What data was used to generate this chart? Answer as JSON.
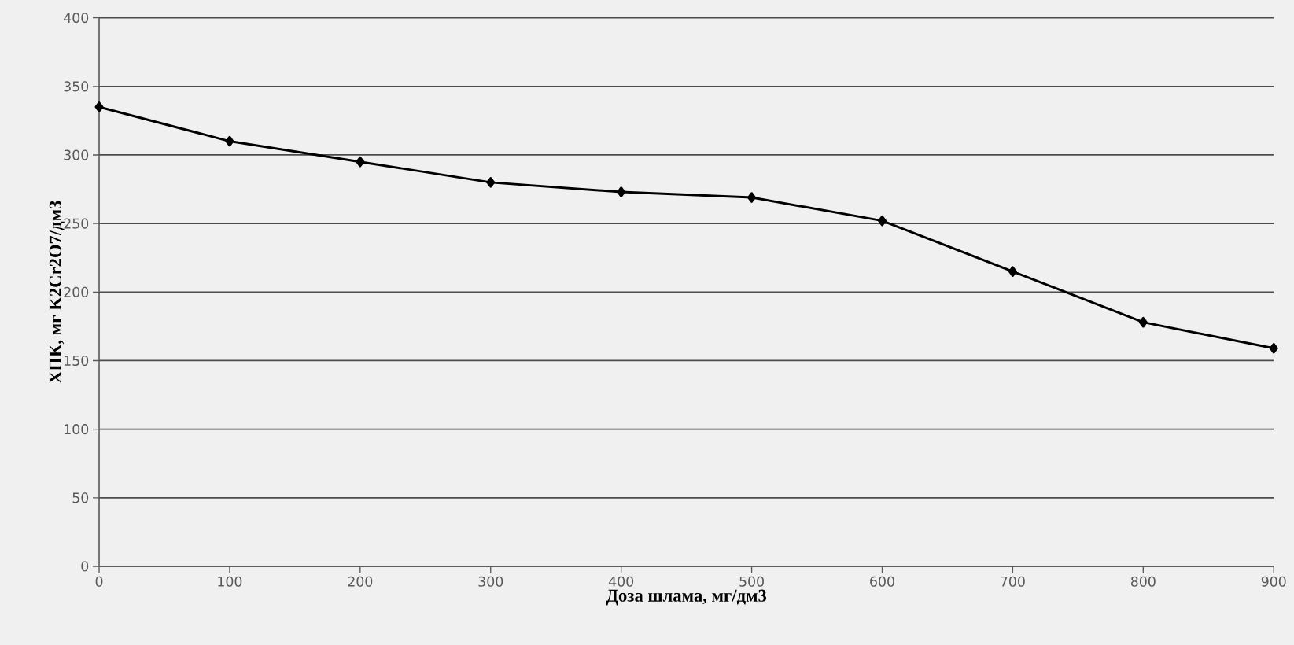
{
  "chart_data": {
    "type": "line",
    "xlabel": "Доза шлама, мг/дм3",
    "ylabel": "ХПК, мг K2Cr2O7/дм3",
    "x": [
      0,
      100,
      200,
      300,
      400,
      500,
      600,
      700,
      800,
      900
    ],
    "series": [
      {
        "color": "#000000",
        "values": [
          335,
          310,
          295,
          280,
          273,
          269,
          252,
          215,
          178,
          159
        ]
      }
    ],
    "xlim": [
      0,
      900
    ],
    "ylim": [
      0,
      400
    ],
    "xticks": [
      0,
      100,
      200,
      300,
      400,
      500,
      600,
      700,
      800,
      900
    ],
    "yticks": [
      0,
      50,
      100,
      150,
      200,
      250,
      300,
      350,
      400
    ],
    "grid": "y",
    "marker": "diamond",
    "line_style": "solid"
  }
}
